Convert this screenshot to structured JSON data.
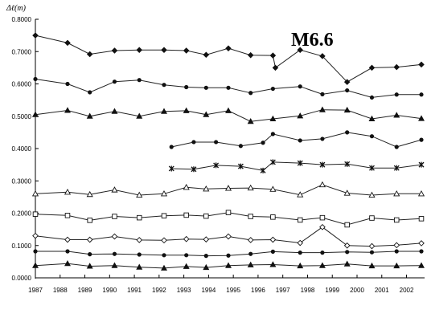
{
  "chart_data": {
    "type": "line",
    "ylabel": "Δℓ(m)",
    "annotation": "M6.6",
    "xlim": [
      1987,
      2002.6
    ],
    "ylim": [
      0,
      0.8
    ],
    "x_ticks": [
      "1987",
      "1988",
      "1989",
      "1990",
      "1991",
      "1992",
      "1993",
      "1994",
      "1995",
      "1996",
      "1997",
      "1998",
      "1999",
      "2000",
      "2001",
      "2002"
    ],
    "y_ticks": [
      "0.0000",
      "0.1000",
      "0.2000",
      "0.3000",
      "0.4000",
      "0.5000",
      "0.6000",
      "0.7000",
      "0.8000"
    ],
    "grid": false,
    "legend": "none",
    "series": [
      {
        "marker": "diamond",
        "filled": true,
        "points": [
          [
            1987,
            0.75
          ],
          [
            1988.3,
            0.727
          ],
          [
            1989.2,
            0.692
          ],
          [
            1990.2,
            0.703
          ],
          [
            1991.2,
            0.705
          ],
          [
            1992.2,
            0.705
          ],
          [
            1993.1,
            0.703
          ],
          [
            1993.9,
            0.69
          ],
          [
            1994.8,
            0.71
          ],
          [
            1995.7,
            0.689
          ],
          [
            1996.6,
            0.688
          ],
          [
            1996.7,
            0.65
          ],
          [
            1997.7,
            0.705
          ],
          [
            1998.6,
            0.686
          ],
          [
            1999.6,
            0.606
          ],
          [
            2000.6,
            0.65
          ],
          [
            2001.6,
            0.652
          ],
          [
            2002.6,
            0.66
          ]
        ]
      },
      {
        "marker": "dot",
        "filled": true,
        "points": [
          [
            1987,
            0.615
          ],
          [
            1988.3,
            0.6
          ],
          [
            1989.2,
            0.574
          ],
          [
            1990.2,
            0.607
          ],
          [
            1991.2,
            0.612
          ],
          [
            1992.2,
            0.597
          ],
          [
            1993.1,
            0.59
          ],
          [
            1993.9,
            0.588
          ],
          [
            1994.8,
            0.588
          ],
          [
            1995.7,
            0.572
          ],
          [
            1996.6,
            0.585
          ],
          [
            1997.7,
            0.592
          ],
          [
            1998.6,
            0.568
          ],
          [
            1999.6,
            0.58
          ],
          [
            2000.6,
            0.558
          ],
          [
            2001.6,
            0.567
          ],
          [
            2002.6,
            0.567
          ]
        ]
      },
      {
        "marker": "triangle",
        "filled": true,
        "points": [
          [
            1987,
            0.505
          ],
          [
            1988.3,
            0.518
          ],
          [
            1989.2,
            0.5
          ],
          [
            1990.2,
            0.515
          ],
          [
            1991.2,
            0.5
          ],
          [
            1992.2,
            0.515
          ],
          [
            1993.1,
            0.517
          ],
          [
            1993.9,
            0.505
          ],
          [
            1994.8,
            0.517
          ],
          [
            1995.7,
            0.484
          ],
          [
            1996.6,
            0.492
          ],
          [
            1997.7,
            0.501
          ],
          [
            1998.6,
            0.52
          ],
          [
            1999.6,
            0.519
          ],
          [
            2000.6,
            0.492
          ],
          [
            2001.6,
            0.503
          ],
          [
            2002.6,
            0.493
          ]
        ]
      },
      {
        "marker": "dot",
        "filled": true,
        "points": [
          [
            1992.5,
            0.405
          ],
          [
            1993.4,
            0.42
          ],
          [
            1994.3,
            0.42
          ],
          [
            1995.3,
            0.408
          ],
          [
            1996.2,
            0.418
          ],
          [
            1996.6,
            0.445
          ],
          [
            1997.7,
            0.425
          ],
          [
            1998.6,
            0.43
          ],
          [
            1999.6,
            0.45
          ],
          [
            2000.6,
            0.438
          ],
          [
            2001.6,
            0.405
          ],
          [
            2002.6,
            0.427
          ]
        ]
      },
      {
        "marker": "star",
        "filled": true,
        "points": [
          [
            1992.5,
            0.338
          ],
          [
            1993.4,
            0.336
          ],
          [
            1994.3,
            0.348
          ],
          [
            1995.3,
            0.345
          ],
          [
            1996.2,
            0.332
          ],
          [
            1996.6,
            0.358
          ],
          [
            1997.7,
            0.355
          ],
          [
            1998.6,
            0.35
          ],
          [
            1999.6,
            0.352
          ],
          [
            2000.6,
            0.34
          ],
          [
            2001.6,
            0.34
          ],
          [
            2002.6,
            0.35
          ]
        ]
      },
      {
        "marker": "triangle",
        "filled": false,
        "points": [
          [
            1987,
            0.26
          ],
          [
            1988.3,
            0.265
          ],
          [
            1989.2,
            0.258
          ],
          [
            1990.2,
            0.272
          ],
          [
            1991.2,
            0.256
          ],
          [
            1992.2,
            0.26
          ],
          [
            1993.1,
            0.28
          ],
          [
            1993.9,
            0.275
          ],
          [
            1994.8,
            0.277
          ],
          [
            1995.7,
            0.278
          ],
          [
            1996.6,
            0.274
          ],
          [
            1997.7,
            0.257
          ],
          [
            1998.6,
            0.288
          ],
          [
            1999.6,
            0.262
          ],
          [
            2000.6,
            0.256
          ],
          [
            2001.6,
            0.26
          ],
          [
            2002.6,
            0.26
          ]
        ]
      },
      {
        "marker": "square",
        "filled": false,
        "points": [
          [
            1987,
            0.197
          ],
          [
            1988.3,
            0.193
          ],
          [
            1989.2,
            0.178
          ],
          [
            1990.2,
            0.19
          ],
          [
            1991.2,
            0.186
          ],
          [
            1992.2,
            0.192
          ],
          [
            1993.1,
            0.194
          ],
          [
            1993.9,
            0.191
          ],
          [
            1994.8,
            0.202
          ],
          [
            1995.7,
            0.19
          ],
          [
            1996.6,
            0.188
          ],
          [
            1997.7,
            0.179
          ],
          [
            1998.6,
            0.186
          ],
          [
            1999.6,
            0.164
          ],
          [
            2000.6,
            0.185
          ],
          [
            2001.6,
            0.179
          ],
          [
            2002.6,
            0.183
          ]
        ]
      },
      {
        "marker": "diamond",
        "filled": false,
        "points": [
          [
            1987,
            0.13
          ],
          [
            1988.3,
            0.118
          ],
          [
            1989.2,
            0.118
          ],
          [
            1990.2,
            0.128
          ],
          [
            1991.2,
            0.117
          ],
          [
            1992.2,
            0.116
          ],
          [
            1993.1,
            0.12
          ],
          [
            1993.9,
            0.119
          ],
          [
            1994.8,
            0.128
          ],
          [
            1995.7,
            0.117
          ],
          [
            1996.6,
            0.118
          ],
          [
            1997.7,
            0.108
          ],
          [
            1998.6,
            0.157
          ],
          [
            1999.6,
            0.1
          ],
          [
            2000.6,
            0.098
          ],
          [
            2001.6,
            0.101
          ],
          [
            2002.6,
            0.107
          ]
        ]
      },
      {
        "marker": "dot",
        "filled": true,
        "points": [
          [
            1987,
            0.082
          ],
          [
            1988.3,
            0.082
          ],
          [
            1989.2,
            0.073
          ],
          [
            1990.2,
            0.074
          ],
          [
            1991.2,
            0.072
          ],
          [
            1992.2,
            0.07
          ],
          [
            1993.1,
            0.07
          ],
          [
            1993.9,
            0.068
          ],
          [
            1994.8,
            0.069
          ],
          [
            1995.7,
            0.074
          ],
          [
            1996.6,
            0.081
          ],
          [
            1997.7,
            0.078
          ],
          [
            1998.6,
            0.078
          ],
          [
            1999.6,
            0.08
          ],
          [
            2000.6,
            0.079
          ],
          [
            2001.6,
            0.082
          ],
          [
            2002.6,
            0.082
          ]
        ]
      },
      {
        "marker": "triangle",
        "filled": true,
        "points": [
          [
            1987,
            0.038
          ],
          [
            1988.3,
            0.044
          ],
          [
            1989.2,
            0.036
          ],
          [
            1990.2,
            0.038
          ],
          [
            1991.2,
            0.033
          ],
          [
            1992.2,
            0.03
          ],
          [
            1993.1,
            0.035
          ],
          [
            1993.9,
            0.032
          ],
          [
            1994.8,
            0.038
          ],
          [
            1995.7,
            0.04
          ],
          [
            1996.6,
            0.041
          ],
          [
            1997.7,
            0.037
          ],
          [
            1998.6,
            0.038
          ],
          [
            1999.6,
            0.043
          ],
          [
            2000.6,
            0.037
          ],
          [
            2001.6,
            0.037
          ],
          [
            2002.6,
            0.038
          ]
        ]
      }
    ]
  }
}
